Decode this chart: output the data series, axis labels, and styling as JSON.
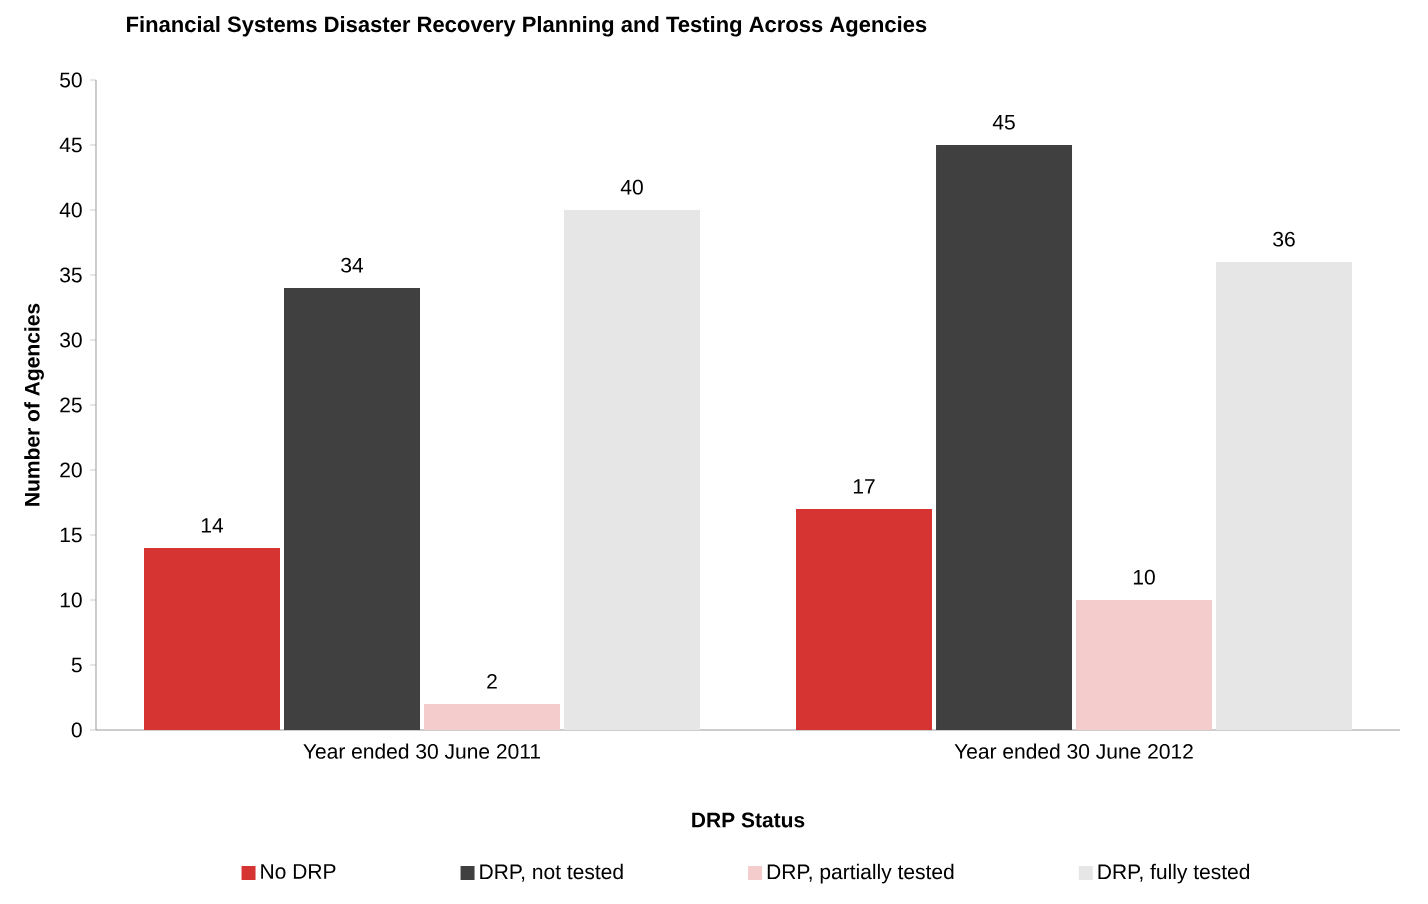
{
  "chart_data": {
    "type": "bar",
    "title": "Financial Systems Disaster Recovery Planning and Testing Across Agencies",
    "xlabel": "DRP Status",
    "ylabel": "Number of Agencies",
    "categories": [
      "Year ended 30 June 2011",
      "Year ended 30 June 2012"
    ],
    "series": [
      {
        "name": "No DRP",
        "color": "#d63333",
        "values": [
          14,
          17
        ]
      },
      {
        "name": "DRP, not tested",
        "color": "#404040",
        "values": [
          34,
          45
        ]
      },
      {
        "name": "DRP, partially tested",
        "color": "#f4cccc",
        "values": [
          2,
          10
        ]
      },
      {
        "name": "DRP, fully tested",
        "color": "#e6e6e6",
        "values": [
          40,
          36
        ]
      }
    ],
    "ylim": [
      0,
      50
    ],
    "yticks": [
      0,
      5,
      10,
      15,
      20,
      25,
      30,
      35,
      40,
      45,
      50
    ],
    "data_labels": true,
    "grid": false,
    "legend": "bottom"
  }
}
